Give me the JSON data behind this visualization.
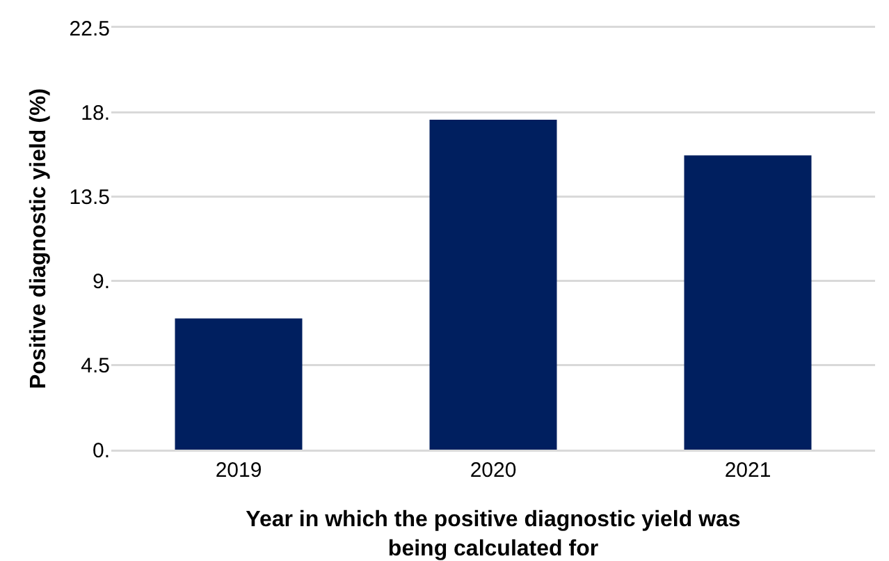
{
  "chart_data": {
    "type": "bar",
    "xlabel": "Year in which the positive diagnostic yield was being calculated for",
    "ylabel": "Positive diagnostic yield (%)",
    "categories": [
      "2019",
      "2020",
      "2021"
    ],
    "values": [
      7.0,
      17.6,
      15.7
    ],
    "color": "#001f5f",
    "ylim": [
      0,
      22.5
    ],
    "yticks": [
      {
        "value": 0,
        "label": "0."
      },
      4.5,
      {
        "value": 9,
        "label": "9."
      },
      13.5,
      {
        "value": 18,
        "label": "18."
      },
      22.5
    ],
    "grid": "y"
  }
}
